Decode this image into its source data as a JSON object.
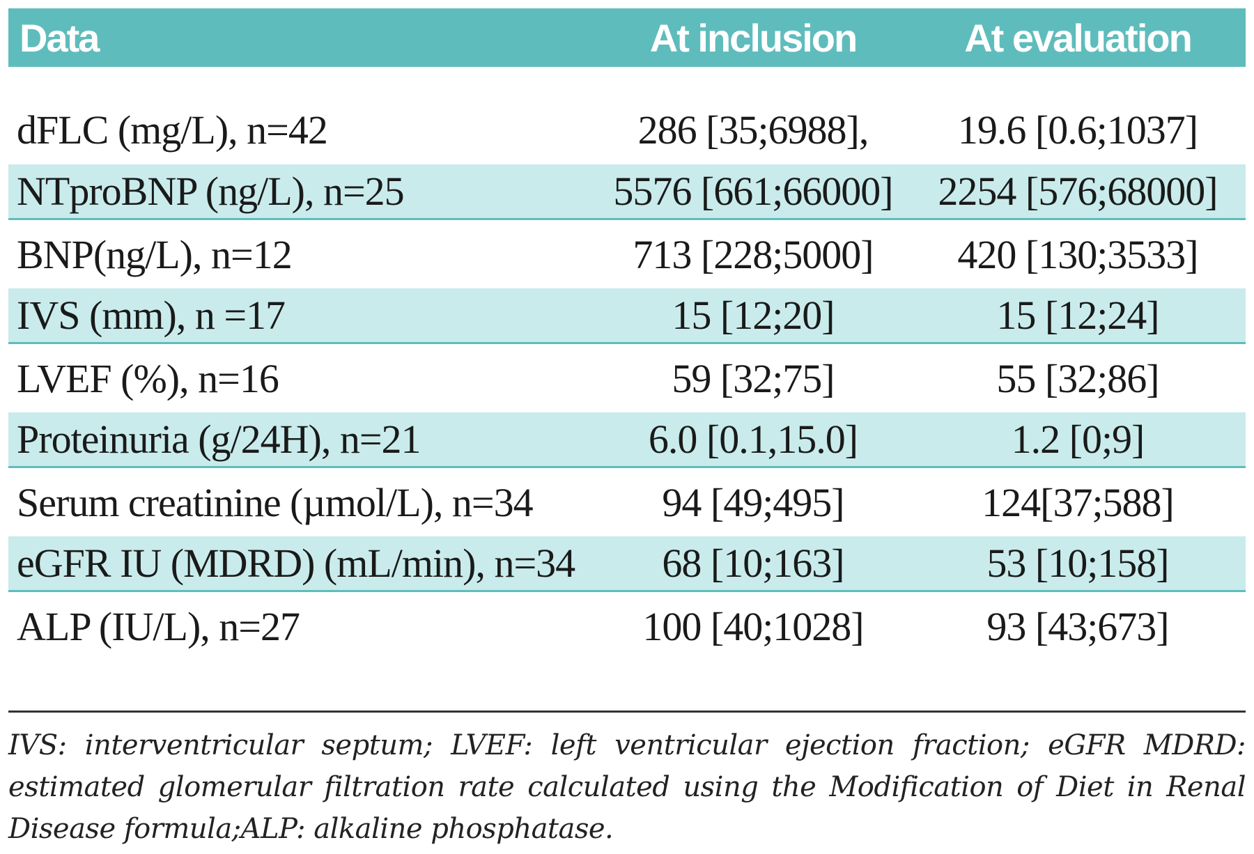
{
  "header": {
    "col_data": "Data",
    "col_inclusion": "At inclusion",
    "col_evaluation": "At evaluation"
  },
  "rows": [
    {
      "label": "dFLC (mg/L), n=42",
      "inclusion": "286 [35;6988],",
      "evaluation": "19.6 [0.6;1037]"
    },
    {
      "label": "NTproBNP (ng/L), n=25",
      "inclusion": "5576 [661;66000]",
      "evaluation": "2254 [576;68000]"
    },
    {
      "label": "BNP(ng/L), n=12",
      "inclusion": "713 [228;5000]",
      "evaluation": "420 [130;3533]"
    },
    {
      "label": "IVS (mm), n =17",
      "inclusion": "15 [12;20]",
      "evaluation": "15 [12;24]"
    },
    {
      "label": "LVEF (%), n=16",
      "inclusion": "59 [32;75]",
      "evaluation": "55 [32;86]"
    },
    {
      "label": "Proteinuria (g/24H), n=21",
      "inclusion": "6.0 [0.1,15.0]",
      "evaluation": "1.2 [0;9]"
    },
    {
      "label": "Serum creatinine (µmol/L), n=34",
      "inclusion": "94 [49;495]",
      "evaluation": "124[37;588]"
    },
    {
      "label": "eGFR IU (MDRD) (mL/min), n=34",
      "inclusion": "68 [10;163]",
      "evaluation": "53 [10;158]"
    },
    {
      "label": "ALP (IU/L), n=27",
      "inclusion": "100 [40;1028]",
      "evaluation": "93 [43;673]"
    }
  ],
  "footnote": "IVS: interventricular septum; LVEF: left ventricular ejection fraction; eGFR MDRD: estimated glomerular filtration rate calculated using the Modification of Diet in Renal Disease formula;ALP: alkaline phosphatase.",
  "colors": {
    "header_bg": "#5fbcbc",
    "shade_bg": "#c9ebeb"
  }
}
